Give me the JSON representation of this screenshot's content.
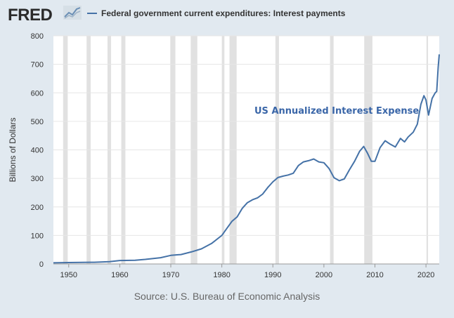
{
  "header": {
    "logo_text": "FRED",
    "logo_icon": "line-chart-icon"
  },
  "colors": {
    "background": "#e1e9f0",
    "plot_background": "#ffffff",
    "series": "#4572a7",
    "recession": "#e1e1e1",
    "grid": "#e6e6e6",
    "annotation": "#3a66a8"
  },
  "source": "Source: U.S. Bureau of Economic Analysis",
  "chart_data": {
    "type": "line",
    "ylabel": "Billions of Dollars",
    "xlim": [
      1947,
      2022.6
    ],
    "ylim": [
      0,
      800
    ],
    "x_ticks": [
      1950,
      1960,
      1970,
      1980,
      1990,
      2000,
      2010,
      2020
    ],
    "y_ticks": [
      0,
      100,
      200,
      300,
      400,
      500,
      600,
      700,
      800
    ],
    "grid": true,
    "legend_position": "top-left",
    "annotation": "US Annualized Interest Expense",
    "recessions": [
      [
        1948.9,
        1949.8
      ],
      [
        1953.5,
        1954.3
      ],
      [
        1957.6,
        1958.3
      ],
      [
        1960.3,
        1961.1
      ],
      [
        1969.9,
        1970.9
      ],
      [
        1973.9,
        1975.2
      ],
      [
        1980.0,
        1980.5
      ],
      [
        1981.5,
        1982.9
      ],
      [
        1990.5,
        1991.2
      ],
      [
        2001.2,
        2001.9
      ],
      [
        2007.9,
        2009.5
      ],
      [
        2020.1,
        2020.4
      ]
    ],
    "series": [
      {
        "name": "Federal government current expenditures: Interest payments",
        "points": [
          [
            1947,
            4
          ],
          [
            1950,
            5
          ],
          [
            1955,
            6
          ],
          [
            1958,
            8
          ],
          [
            1960,
            12
          ],
          [
            1963,
            13
          ],
          [
            1965,
            16
          ],
          [
            1968,
            22
          ],
          [
            1970,
            30
          ],
          [
            1972,
            33
          ],
          [
            1974,
            42
          ],
          [
            1976,
            53
          ],
          [
            1978,
            72
          ],
          [
            1980,
            100
          ],
          [
            1981,
            125
          ],
          [
            1982,
            150
          ],
          [
            1983,
            165
          ],
          [
            1984,
            195
          ],
          [
            1985,
            215
          ],
          [
            1986,
            225
          ],
          [
            1987,
            232
          ],
          [
            1988,
            245
          ],
          [
            1989,
            268
          ],
          [
            1990,
            288
          ],
          [
            1991,
            303
          ],
          [
            1992,
            308
          ],
          [
            1993,
            312
          ],
          [
            1994,
            318
          ],
          [
            1995,
            345
          ],
          [
            1996,
            358
          ],
          [
            1997,
            362
          ],
          [
            1998,
            368
          ],
          [
            1999,
            358
          ],
          [
            2000,
            355
          ],
          [
            2001,
            335
          ],
          [
            2002,
            302
          ],
          [
            2003,
            292
          ],
          [
            2004,
            298
          ],
          [
            2005,
            330
          ],
          [
            2006,
            360
          ],
          [
            2007,
            395
          ],
          [
            2007.8,
            412
          ],
          [
            2008.5,
            390
          ],
          [
            2009.3,
            360
          ],
          [
            2010,
            360
          ],
          [
            2011,
            408
          ],
          [
            2012,
            432
          ],
          [
            2013,
            420
          ],
          [
            2014,
            410
          ],
          [
            2015,
            440
          ],
          [
            2015.8,
            428
          ],
          [
            2016.5,
            445
          ],
          [
            2017.5,
            462
          ],
          [
            2018.3,
            490
          ],
          [
            2019,
            560
          ],
          [
            2019.6,
            590
          ],
          [
            2020,
            575
          ],
          [
            2020.5,
            522
          ],
          [
            2021.2,
            580
          ],
          [
            2021.8,
            600
          ],
          [
            2022.1,
            605
          ],
          [
            2022.4,
            690
          ],
          [
            2022.6,
            735
          ]
        ]
      }
    ]
  }
}
